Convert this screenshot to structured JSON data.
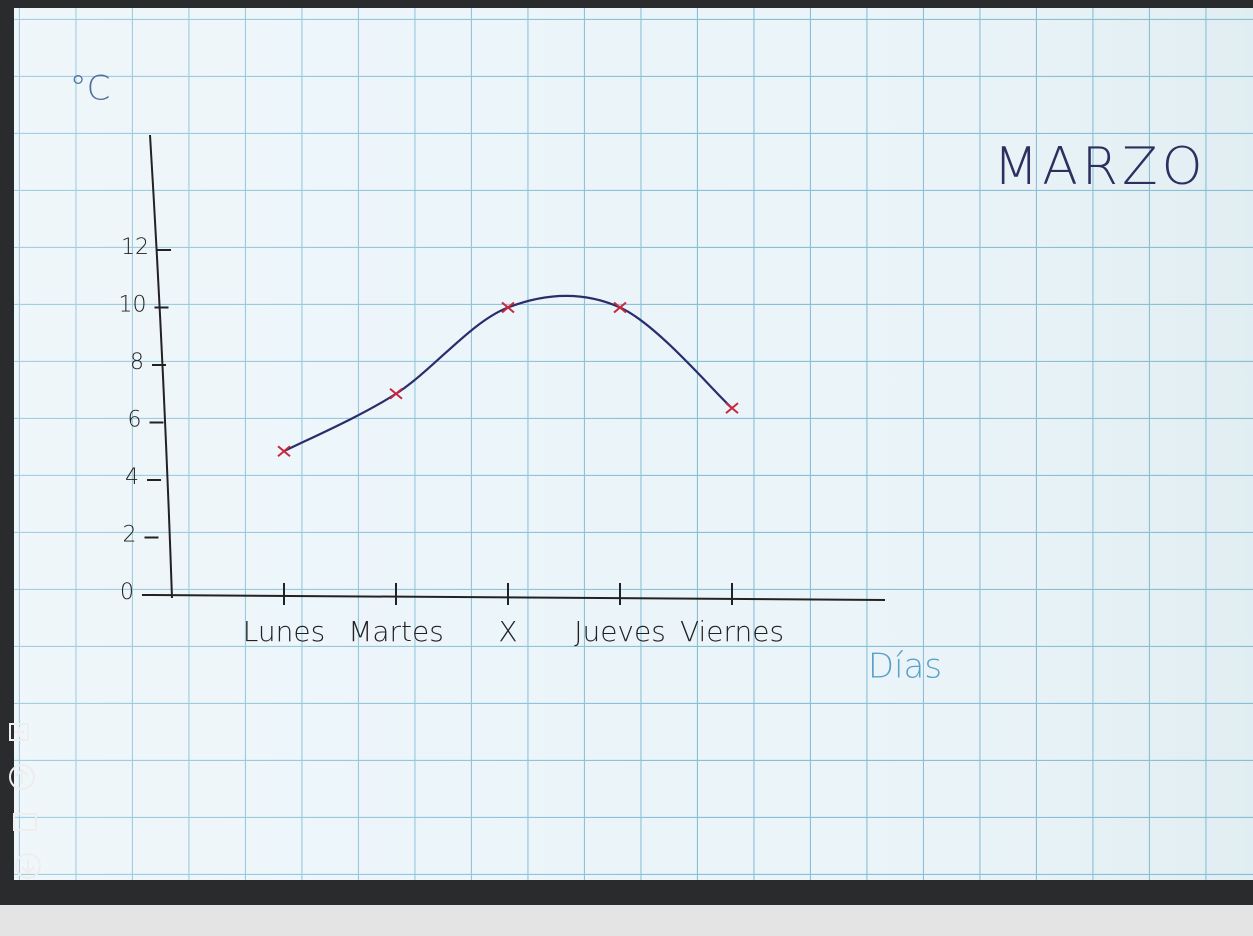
{
  "chart_data": {
    "type": "line",
    "title": "MARZO",
    "y_label": "°C",
    "x_label": "Días",
    "categories": [
      "Lunes",
      "Martes",
      "X",
      "Jueves",
      "Viernes"
    ],
    "series": [
      {
        "values": [
          5,
          7,
          10,
          10,
          6.5
        ],
        "color": "#2b2d6b",
        "marker_color": "#c8283c"
      }
    ],
    "ylim": [
      0,
      16
    ],
    "yticks": [
      0,
      2,
      4,
      6,
      8,
      10,
      12
    ]
  }
}
